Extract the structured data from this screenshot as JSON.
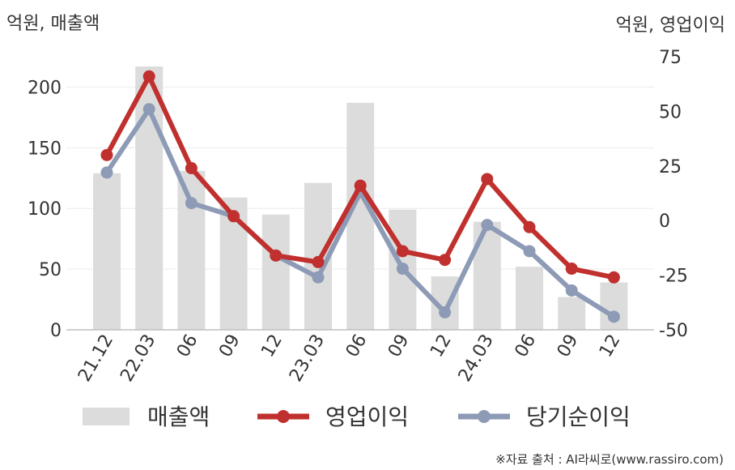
{
  "chart_data": {
    "type": "bar+line",
    "left_axis_label": "억원, 매출액",
    "right_axis_label": "억원, 영업이익",
    "categories": [
      "21.12",
      "22.03",
      "06",
      "09",
      "12",
      "23.03",
      "06",
      "09",
      "12",
      "24.03",
      "06",
      "09",
      "12"
    ],
    "left_ylim": [
      0,
      225
    ],
    "left_ticks": [
      0,
      50,
      100,
      150,
      200
    ],
    "right_ylim": [
      -50,
      75
    ],
    "right_ticks": [
      -50,
      -25,
      0,
      25,
      50,
      75
    ],
    "grid": true,
    "legend_position": "bottom",
    "series": [
      {
        "name": "매출액",
        "kind": "bar",
        "axis": "left",
        "color": "#dcdcdc",
        "values": [
          129,
          217,
          131,
          109,
          95,
          121,
          187,
          99,
          44,
          89,
          52,
          27,
          39
        ]
      },
      {
        "name": "영업이익",
        "kind": "line",
        "axis": "right",
        "color": "#c0302e",
        "values": [
          30,
          66,
          24,
          2,
          -16,
          -19,
          16,
          -14,
          -18,
          19,
          -3,
          -22,
          -26
        ]
      },
      {
        "name": "당기순이익",
        "kind": "line",
        "axis": "right",
        "color": "#8d9bb6",
        "values": [
          22,
          51,
          8,
          2,
          -16,
          -26,
          13,
          -22,
          -42,
          -2,
          -14,
          -32,
          -44
        ]
      }
    ]
  },
  "source_text": "※자료 출처 : AI라씨로(www.rassiro.com)"
}
